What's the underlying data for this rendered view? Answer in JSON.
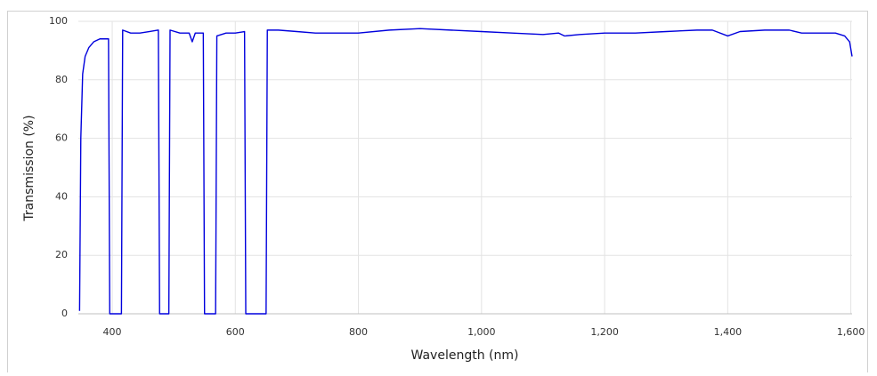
{
  "chart_data": {
    "type": "line",
    "x_label": "Wavelength (nm)",
    "y_label": "Transmission (%)",
    "x": [
      347,
      349,
      352,
      356,
      362,
      370,
      380,
      390,
      394,
      396,
      415,
      417,
      430,
      445,
      460,
      475,
      477,
      492,
      494,
      510,
      525,
      530,
      535,
      548,
      550,
      568,
      570,
      585,
      600,
      615,
      617,
      650,
      652,
      670,
      700,
      730,
      760,
      800,
      850,
      900,
      950,
      1000,
      1050,
      1100,
      1125,
      1135,
      1160,
      1200,
      1250,
      1300,
      1350,
      1375,
      1400,
      1420,
      1460,
      1500,
      1520,
      1550,
      1575,
      1590,
      1598,
      1602
    ],
    "series": [
      {
        "name": "Transmission",
        "color": "#0000dd",
        "values": [
          1,
          60,
          82,
          88,
          91,
          93,
          94,
          94,
          94,
          0,
          0,
          97,
          96,
          96,
          96.5,
          97,
          0,
          0,
          97,
          96,
          96,
          93,
          96,
          96,
          0,
          0,
          95,
          96,
          96,
          96.5,
          0,
          0,
          97,
          97,
          96.5,
          96,
          96,
          96,
          97,
          97.5,
          97,
          96.5,
          96,
          95.5,
          96,
          95,
          95.5,
          96,
          96,
          96.5,
          97,
          97,
          95,
          96.5,
          97,
          97,
          96,
          96,
          96,
          95,
          93,
          88
        ]
      }
    ],
    "xlim": [
      345,
      1602
    ],
    "ylim": [
      0,
      100
    ],
    "xticks": [
      400,
      600,
      800,
      {
        "value": 1000,
        "label": "1,000"
      },
      {
        "value": 1200,
        "label": "1,200"
      },
      {
        "value": 1400,
        "label": "1,400"
      },
      {
        "value": 1600,
        "label": "1,600"
      }
    ],
    "yticks": [
      0,
      20,
      40,
      60,
      80,
      100
    ],
    "grid": true
  }
}
